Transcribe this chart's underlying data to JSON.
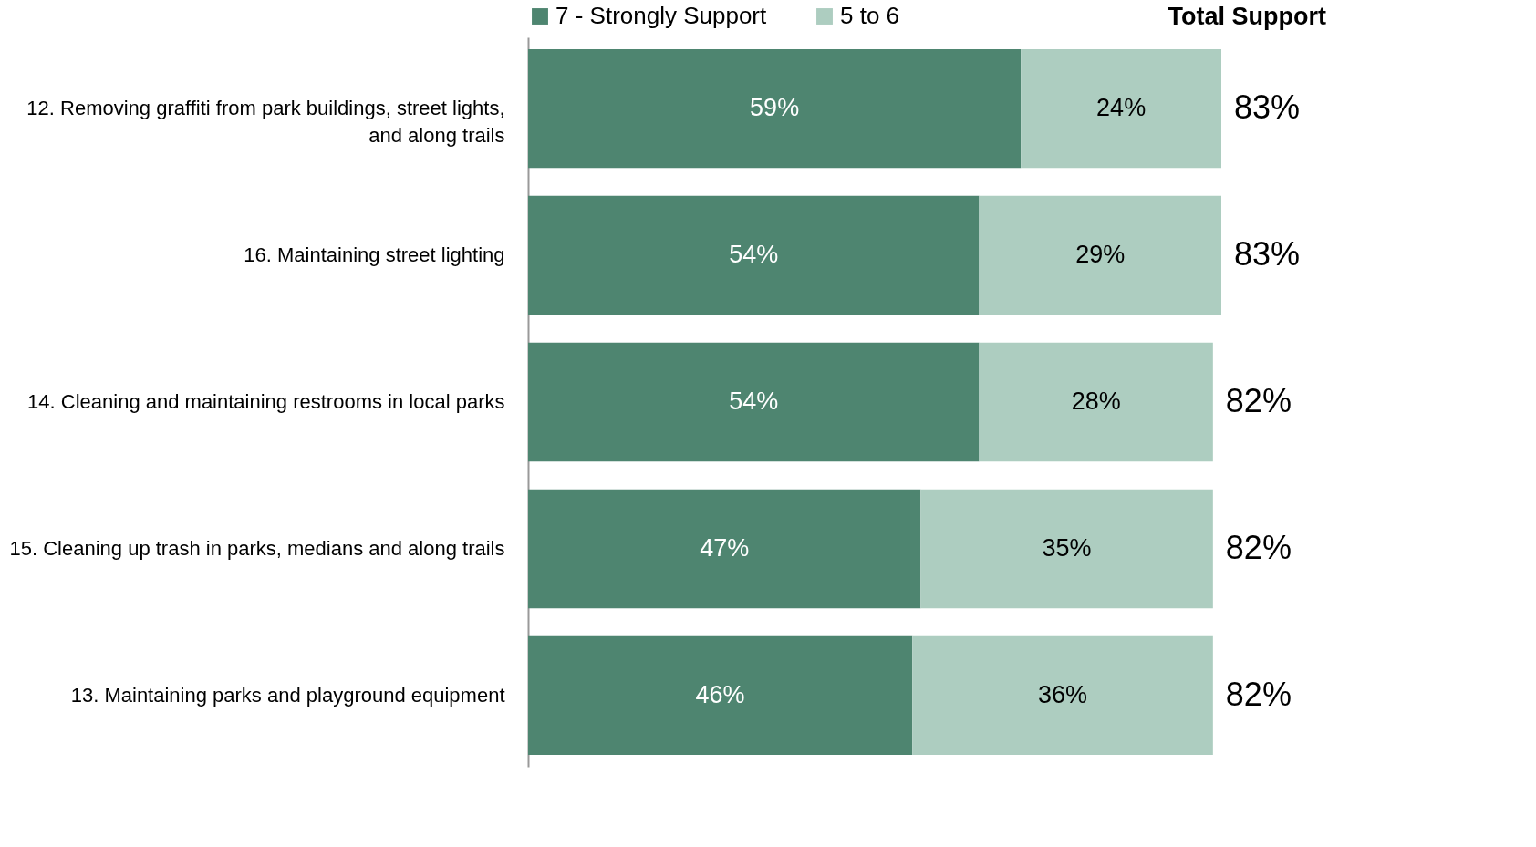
{
  "chart_data": {
    "type": "bar",
    "orientation": "horizontal",
    "stacked": true,
    "legend": "top",
    "annotations": [
      "Total Support"
    ],
    "categories": [
      "12. Removing graffiti from park buildings, street lights, and along trails",
      "16. Maintaining street lighting",
      "14. Cleaning and maintaining restrooms in local parks",
      "15. Cleaning up trash in parks, medians and along trails",
      "13. Maintaining parks and playground equipment"
    ],
    "series": [
      {
        "name": "7 - Strongly Support",
        "color": "#4e8570",
        "values": [
          59,
          54,
          54,
          47,
          46
        ],
        "value_labels": [
          "59%",
          "54%",
          "54%",
          "47%",
          "46%"
        ]
      },
      {
        "name": "5 to 6",
        "color": "#adcdc0",
        "values": [
          24,
          29,
          28,
          35,
          36
        ],
        "value_labels": [
          "24%",
          "29%",
          "28%",
          "35%",
          "36%"
        ]
      }
    ],
    "totals": [
      "83%",
      "83%",
      "82%",
      "82%",
      "82%"
    ]
  }
}
